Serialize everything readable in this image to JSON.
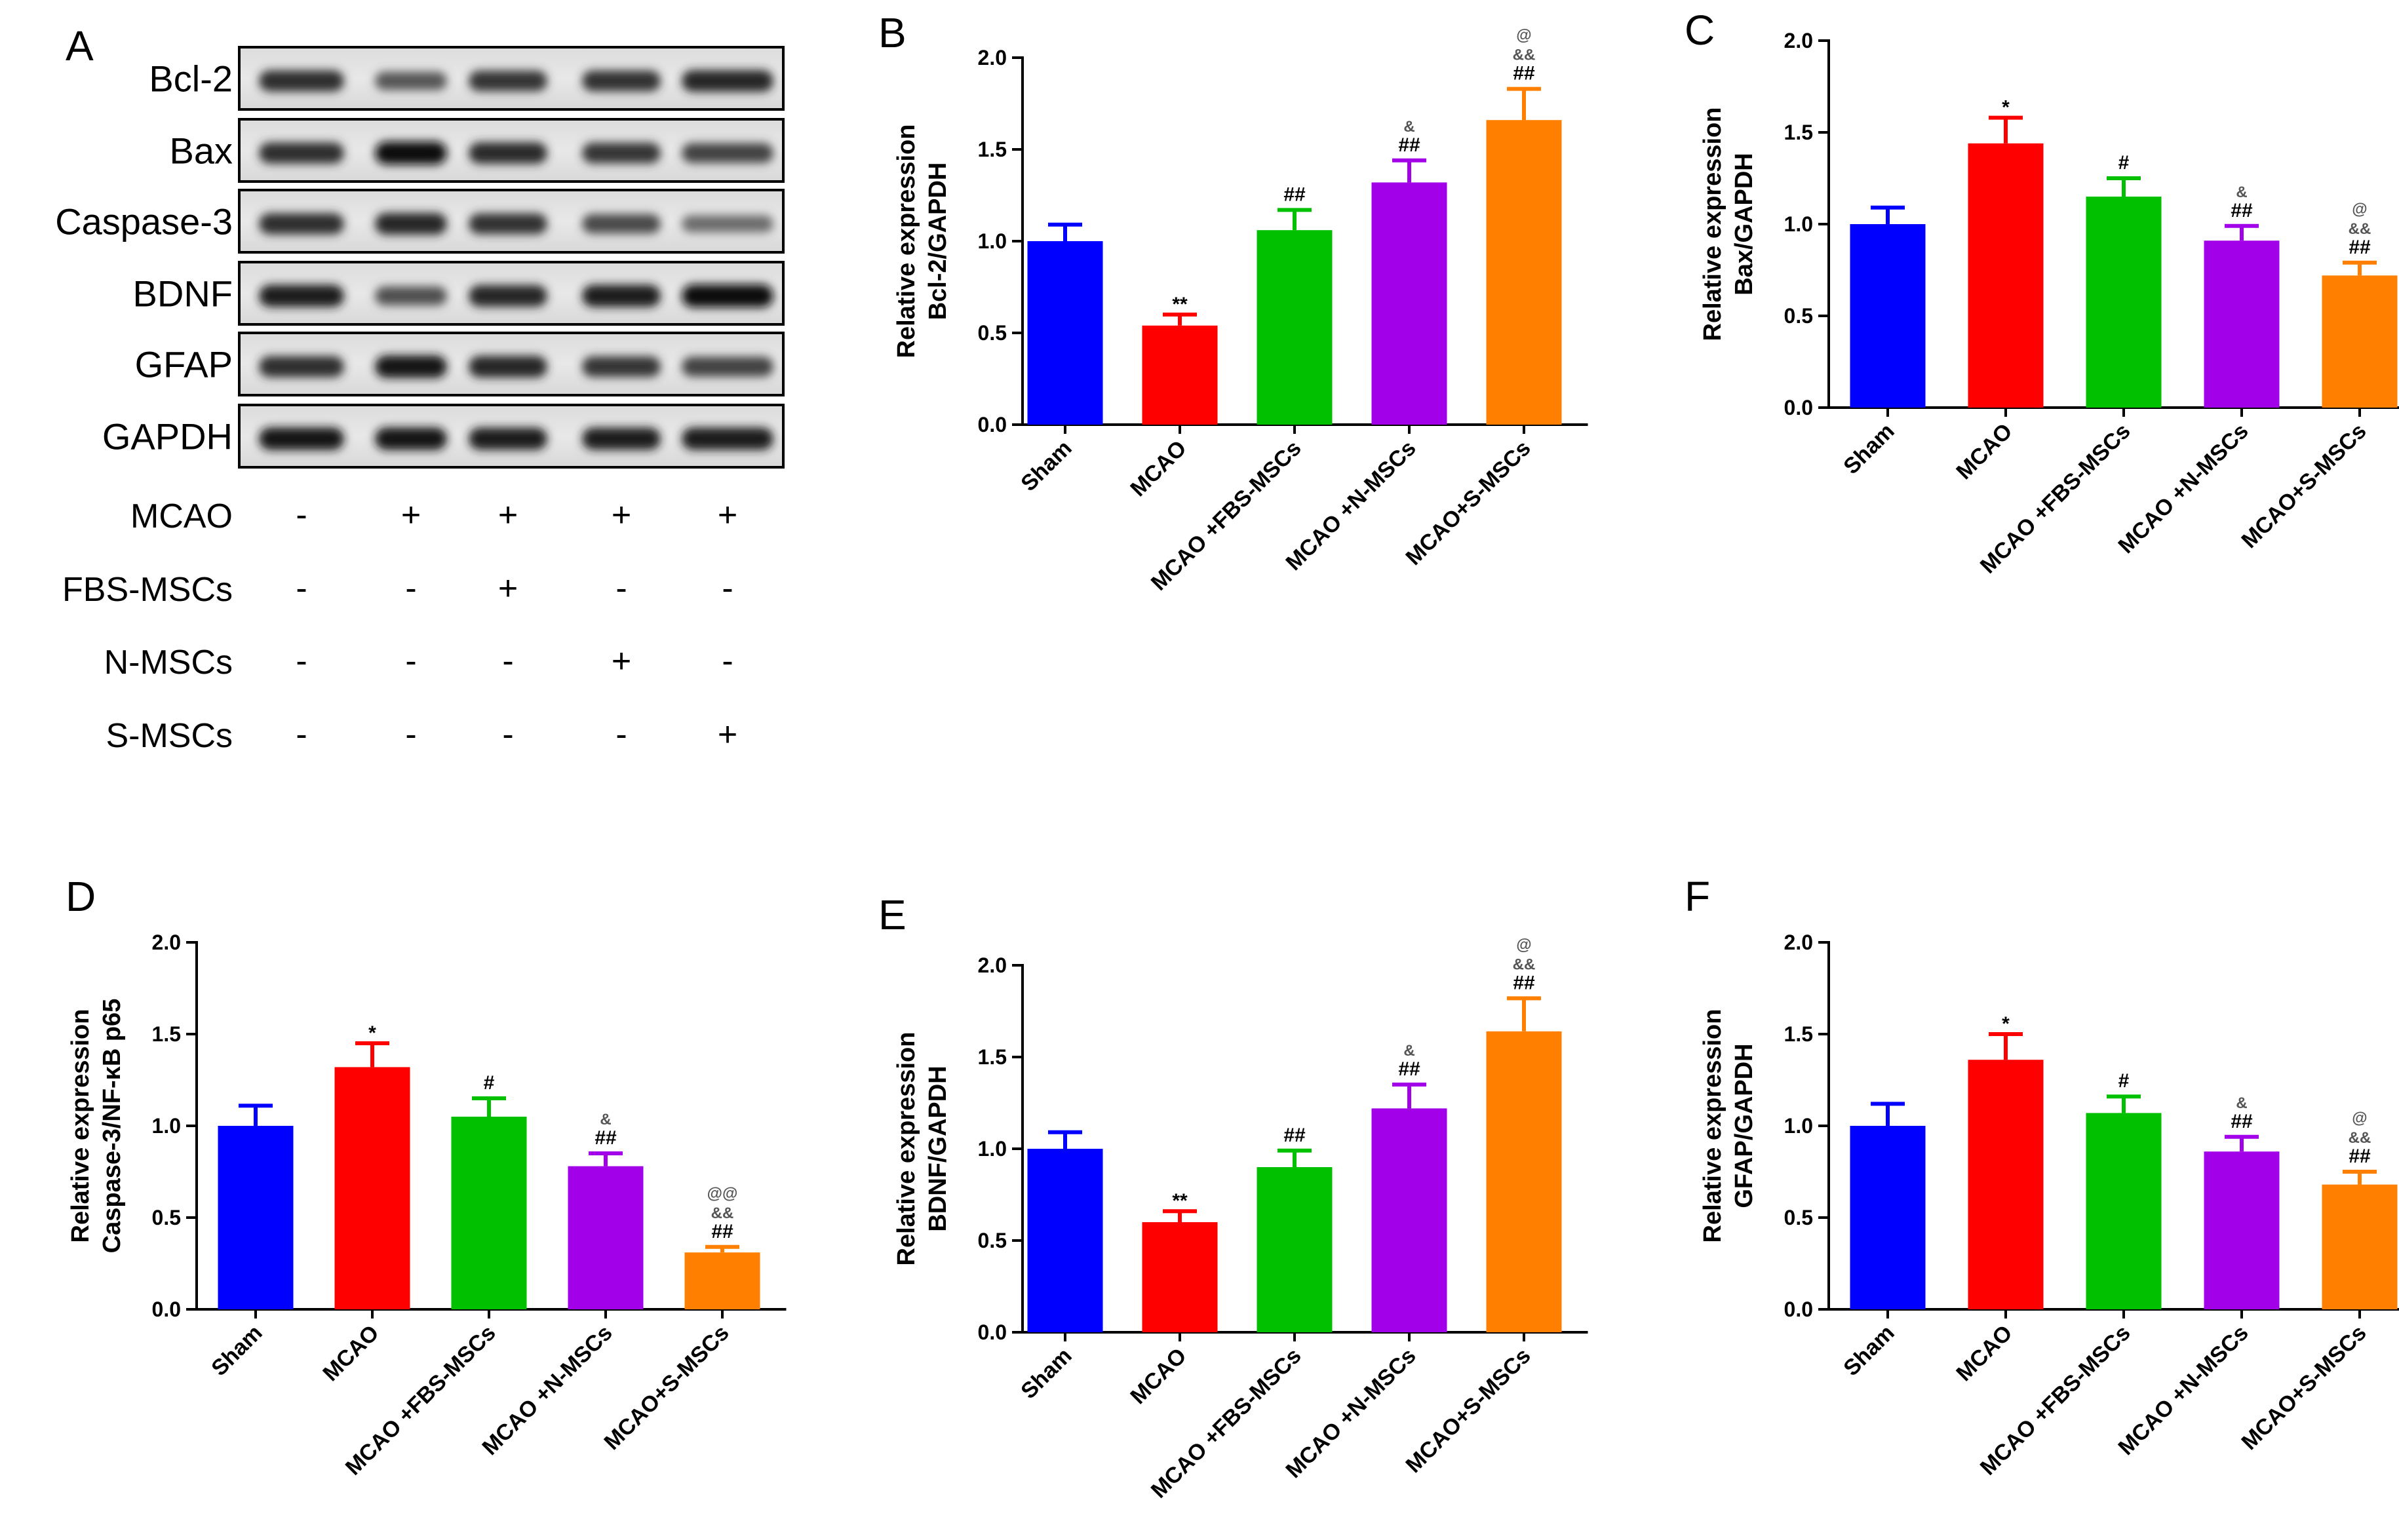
{
  "western_blot": {
    "panel_label": "A",
    "protein_labels": [
      "Bcl-2",
      "Bax",
      "Caspase-3",
      "BDNF",
      "GFAP",
      "GAPDH"
    ],
    "band_intensity": [
      [
        0.75,
        0.45,
        0.7,
        0.72,
        0.8
      ],
      [
        0.75,
        0.95,
        0.78,
        0.7,
        0.6
      ],
      [
        0.75,
        0.8,
        0.72,
        0.55,
        0.3
      ],
      [
        0.85,
        0.5,
        0.8,
        0.85,
        0.95
      ],
      [
        0.75,
        0.9,
        0.8,
        0.7,
        0.6
      ],
      [
        0.9,
        0.9,
        0.85,
        0.85,
        0.88
      ]
    ],
    "conditions": [
      {
        "label": "MCAO",
        "signs": [
          "-",
          "+",
          "+",
          "+",
          "+"
        ]
      },
      {
        "label": "FBS-MSCs",
        "signs": [
          "-",
          "-",
          "+",
          "-",
          "-"
        ]
      },
      {
        "label": "N-MSCs",
        "signs": [
          "-",
          "-",
          "-",
          "+",
          "-"
        ]
      },
      {
        "label": "S-MSCs",
        "signs": [
          "-",
          "-",
          "-",
          "-",
          "+"
        ]
      }
    ]
  },
  "colors": [
    "#0000ff",
    "#ff0000",
    "#00c000",
    "#a100e8",
    "#ff8000"
  ],
  "chart_data": [
    {
      "panel": "B",
      "type": "bar",
      "categories": [
        "Sham",
        "MCAO",
        "MCAO +FBS-MSCs",
        "MCAO +N-MSCs",
        "MCAO+S-MSCs"
      ],
      "values": [
        1.0,
        0.54,
        1.06,
        1.32,
        1.66
      ],
      "errors": [
        0.09,
        0.06,
        0.11,
        0.12,
        0.17
      ],
      "annotations": [
        [],
        [
          "**"
        ],
        [
          "##"
        ],
        [
          "##",
          "&"
        ],
        [
          "##",
          "&&",
          "@"
        ]
      ],
      "ylabel_lines": [
        "Relative expression",
        "Bcl-2/GAPDH"
      ],
      "ylim": [
        0,
        2.0
      ],
      "yticks": [
        "0.0",
        "0.5",
        "1.0",
        "1.5",
        "2.0"
      ]
    },
    {
      "panel": "C",
      "type": "bar",
      "categories": [
        "Sham",
        "MCAO",
        "MCAO +FBS-MSCs",
        "MCAO +N-MSCs",
        "MCAO+S-MSCs"
      ],
      "values": [
        1.0,
        1.44,
        1.15,
        0.91,
        0.72
      ],
      "errors": [
        0.09,
        0.14,
        0.1,
        0.08,
        0.07
      ],
      "annotations": [
        [],
        [
          "*"
        ],
        [
          "#"
        ],
        [
          "##",
          "&"
        ],
        [
          "##",
          "&&",
          "@"
        ]
      ],
      "ylabel_lines": [
        "Relative expression",
        "Bax/GAPDH"
      ],
      "ylim": [
        0,
        2.0
      ],
      "yticks": [
        "0.0",
        "0.5",
        "1.0",
        "1.5",
        "2.0"
      ]
    },
    {
      "panel": "D",
      "type": "bar",
      "categories": [
        "Sham",
        "MCAO",
        "MCAO +FBS-MSCs",
        "MCAO +N-MSCs",
        "MCAO+S-MSCs"
      ],
      "values": [
        1.0,
        1.32,
        1.05,
        0.78,
        0.31
      ],
      "errors": [
        0.11,
        0.13,
        0.1,
        0.07,
        0.03
      ],
      "annotations": [
        [],
        [
          "*"
        ],
        [
          "#"
        ],
        [
          "##",
          "&"
        ],
        [
          "##",
          "&&",
          "@@"
        ]
      ],
      "ylabel_lines": [
        "Relative expression",
        "Caspase-3/NF-κB p65"
      ],
      "ylim": [
        0,
        2.0
      ],
      "yticks": [
        "0.0",
        "0.5",
        "1.0",
        "1.5",
        "2.0"
      ]
    },
    {
      "panel": "E",
      "type": "bar",
      "categories": [
        "Sham",
        "MCAO",
        "MCAO +FBS-MSCs",
        "MCAO +N-MSCs",
        "MCAO+S-MSCs"
      ],
      "values": [
        1.0,
        0.6,
        0.9,
        1.22,
        1.64
      ],
      "errors": [
        0.09,
        0.06,
        0.09,
        0.13,
        0.18
      ],
      "annotations": [
        [],
        [
          "**"
        ],
        [
          "##"
        ],
        [
          "##",
          "&"
        ],
        [
          "##",
          "&&",
          "@"
        ]
      ],
      "ylabel_lines": [
        "Relative expression",
        "BDNF/GAPDH"
      ],
      "ylim": [
        0,
        2.0
      ],
      "yticks": [
        "0.0",
        "0.5",
        "1.0",
        "1.5",
        "2.0"
      ]
    },
    {
      "panel": "F",
      "type": "bar",
      "categories": [
        "Sham",
        "MCAO",
        "MCAO +FBS-MSCs",
        "MCAO +N-MSCs",
        "MCAO+S-MSCs"
      ],
      "values": [
        1.0,
        1.36,
        1.07,
        0.86,
        0.68
      ],
      "errors": [
        0.12,
        0.14,
        0.09,
        0.08,
        0.07
      ],
      "annotations": [
        [],
        [
          "*"
        ],
        [
          "#"
        ],
        [
          "##",
          "&"
        ],
        [
          "##",
          "&&",
          "@"
        ]
      ],
      "ylabel_lines": [
        "Relative expression",
        "GFAP/GAPDH"
      ],
      "ylim": [
        0,
        2.0
      ],
      "yticks": [
        "0.0",
        "0.5",
        "1.0",
        "1.5",
        "2.0"
      ]
    }
  ]
}
